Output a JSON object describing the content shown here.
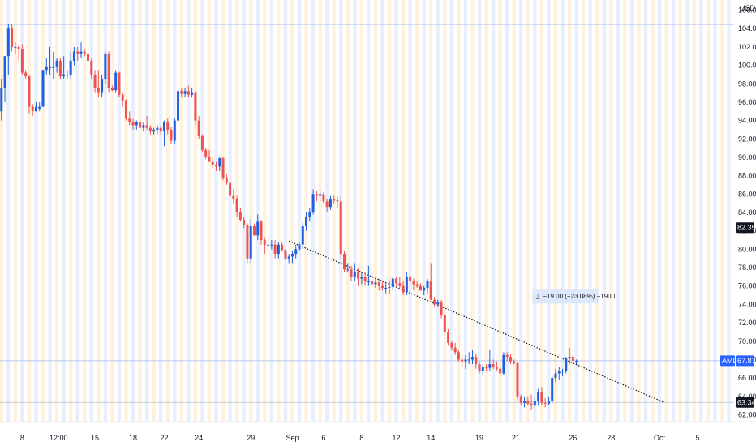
{
  "colors": {
    "up": "#1f5fe0",
    "down": "#ef5350",
    "band_orange": "#fff1dc",
    "band_blue": "#e8eefc",
    "price_line_blue": "#b9c7f0",
    "tag_blue": "#2962ff",
    "tag_black": "#131722",
    "measure_bg": "#dbe7fb",
    "trend": "#131722"
  },
  "chart_data": {
    "type": "candlestick",
    "currency": "USD",
    "y_range": [
      61.6,
      106.4
    ],
    "y_ticks": [
      "106.00",
      "104.00",
      "102.00",
      "100.00",
      "98.00",
      "96.00",
      "94.00",
      "92.00",
      "90.00",
      "88.00",
      "86.00",
      "84.00",
      "82.00",
      "80.00",
      "78.00",
      "76.00",
      "74.00",
      "72.00",
      "70.00",
      "68.00",
      "66.00",
      "64.00",
      "62.00"
    ],
    "x_ticks": [
      {
        "label": "8",
        "x": 7.0
      },
      {
        "label": "12:00",
        "x": 17.5
      },
      {
        "label": "15",
        "x": 28.0
      },
      {
        "label": "18",
        "x": 39.0
      },
      {
        "label": "22",
        "x": 48.0
      },
      {
        "label": "24",
        "x": 58.0
      },
      {
        "label": "29",
        "x": 73.0
      },
      {
        "label": "Sep",
        "x": 85.0
      },
      {
        "label": "6",
        "x": 94.0
      },
      {
        "label": "8",
        "x": 105.0
      },
      {
        "label": "12",
        "x": 115.0
      },
      {
        "label": "14",
        "x": 125.0
      },
      {
        "label": "19",
        "x": 139.0
      },
      {
        "label": "21",
        "x": 149.5
      },
      {
        "label": "26",
        "x": 166.0
      },
      {
        "label": "28",
        "x": 177.0
      },
      {
        "label": "Oct",
        "x": 191.0
      },
      {
        "label": "5",
        "x": 202.0
      }
    ],
    "candles": [
      [
        97.5,
        99,
        94,
        95
      ],
      [
        95,
        98.5,
        94,
        97.5
      ],
      [
        97.5,
        101,
        96,
        101
      ],
      [
        101,
        104.5,
        99,
        104
      ],
      [
        104,
        104.5,
        101.5,
        102
      ],
      [
        102,
        102.5,
        101.2,
        102
      ],
      [
        102,
        102.2,
        100.5,
        101.8
      ],
      [
        101.8,
        102.3,
        99,
        99.2
      ],
      [
        99.2,
        99.5,
        98.5,
        98.8
      ],
      [
        98.8,
        99,
        94.8,
        95.5
      ],
      [
        95.5,
        95.8,
        94.5,
        95
      ],
      [
        95,
        96,
        95,
        95.5
      ],
      [
        95.3,
        96,
        95,
        95.5
      ],
      [
        95.5,
        99.5,
        95.5,
        99.5
      ],
      [
        99.5,
        100.8,
        99,
        99.8
      ],
      [
        99.8,
        102,
        99,
        99.8
      ],
      [
        99.8,
        101.5,
        98.5,
        99.8
      ],
      [
        99.8,
        100.8,
        99.2,
        100.5
      ],
      [
        100.5,
        100.8,
        98.5,
        98.8
      ],
      [
        98.8,
        101,
        98.5,
        99
      ],
      [
        99,
        99.5,
        98.5,
        99
      ],
      [
        99,
        101.5,
        98.5,
        100.5
      ],
      [
        100.5,
        102,
        100,
        101.5
      ],
      [
        101.5,
        102,
        100.5,
        101.3
      ],
      [
        101.3,
        102.5,
        100.8,
        101.5
      ],
      [
        101.5,
        101.8,
        101,
        101.3
      ],
      [
        101.3,
        101.5,
        100,
        100.5
      ],
      [
        100.5,
        100.8,
        98.5,
        99
      ],
      [
        99,
        99.5,
        97,
        97.5
      ],
      [
        97.5,
        99.5,
        96.5,
        97
      ],
      [
        97,
        99,
        96.5,
        98.5
      ],
      [
        98.5,
        101.5,
        98,
        101.2
      ],
      [
        101.2,
        101.5,
        97,
        97.5
      ],
      [
        97.5,
        97.8,
        97.2,
        97.3
      ],
      [
        97.3,
        99.5,
        97,
        99.2
      ],
      [
        99.2,
        99.3,
        96.5,
        96.8
      ],
      [
        96.8,
        97,
        95.5,
        96.2
      ],
      [
        96.2,
        96.3,
        94,
        94.2
      ],
      [
        94.2,
        95,
        93.5,
        93.8
      ],
      [
        93.8,
        94.2,
        93,
        93.5
      ],
      [
        93.5,
        94,
        93,
        93.8
      ],
      [
        93.8,
        94.5,
        93,
        93.2
      ],
      [
        93.2,
        93.8,
        92.8,
        93.5
      ],
      [
        93.5,
        94.5,
        93,
        93.2
      ],
      [
        93.2,
        93.5,
        92.5,
        92.8
      ],
      [
        92.8,
        93.2,
        92.5,
        93
      ],
      [
        93,
        93.5,
        92.5,
        93.2
      ],
      [
        93.2,
        93.5,
        92.5,
        92.8
      ],
      [
        92.8,
        94,
        91.2,
        93.8
      ],
      [
        93.8,
        94.2,
        92.5,
        93
      ],
      [
        93,
        93.3,
        91.5,
        91.8
      ],
      [
        91.8,
        94.3,
        91.5,
        94
      ],
      [
        94,
        97.5,
        93.5,
        97.2
      ],
      [
        97.2,
        97.5,
        96.5,
        96.9
      ],
      [
        96.9,
        97.5,
        96.5,
        97.2
      ],
      [
        97.2,
        97.8,
        96.5,
        96.8
      ],
      [
        96.8,
        97.5,
        96.5,
        97
      ],
      [
        97,
        97.2,
        93.5,
        94
      ],
      [
        94,
        94.5,
        92,
        92.3
      ],
      [
        92.3,
        92.5,
        90.5,
        90.8
      ],
      [
        90.8,
        91,
        89.8,
        90.1
      ],
      [
        90.1,
        90.8,
        89.5,
        89.5
      ],
      [
        89.5,
        90,
        88.8,
        89.2
      ],
      [
        89.2,
        89.5,
        88.5,
        89
      ],
      [
        89,
        90,
        88.5,
        89.9
      ],
      [
        89.9,
        90,
        87.5,
        87.8
      ],
      [
        87.8,
        88.2,
        87,
        87.2
      ],
      [
        87.2,
        87.5,
        85.5,
        85.8
      ],
      [
        85.8,
        86.5,
        85,
        85.5
      ],
      [
        85.5,
        85.8,
        83.5,
        84
      ],
      [
        84,
        84.5,
        83,
        83.2
      ],
      [
        83.2,
        83.5,
        82.3,
        82.6
      ],
      [
        82.6,
        82.8,
        78.5,
        79
      ],
      [
        79,
        83.3,
        78.5,
        82.5
      ],
      [
        82.5,
        82.8,
        81.5,
        81.5
      ],
      [
        81.5,
        83.8,
        81,
        83
      ],
      [
        83,
        83.2,
        80.5,
        81
      ],
      [
        81,
        81.3,
        79.5,
        80.5
      ],
      [
        80.5,
        81.5,
        80.2,
        80.5
      ],
      [
        80.5,
        81,
        80,
        80.5
      ],
      [
        80.5,
        81,
        79,
        79.5
      ],
      [
        79.5,
        80.8,
        79,
        80.5
      ],
      [
        80.5,
        80.8,
        79.8,
        79.9
      ],
      [
        79.9,
        80,
        78.8,
        79
      ],
      [
        79,
        79.5,
        78.5,
        79.2
      ],
      [
        79.2,
        79.8,
        78.5,
        79.5
      ],
      [
        79.5,
        80.5,
        79,
        80
      ],
      [
        80,
        80.8,
        79.8,
        80.5
      ],
      [
        80.5,
        83,
        80,
        82.5
      ],
      [
        82.5,
        84,
        82,
        83.5
      ],
      [
        83.5,
        84.5,
        83,
        84
      ],
      [
        84,
        86.5,
        83.8,
        86
      ],
      [
        86,
        86.3,
        85.2,
        85.8
      ],
      [
        85.8,
        86.5,
        85.2,
        86
      ],
      [
        86,
        86.2,
        85,
        85.2
      ],
      [
        85.2,
        85.5,
        84,
        84.6
      ],
      [
        84.6,
        85.8,
        84.3,
        85.5
      ],
      [
        85.5,
        85.8,
        85,
        85.3
      ],
      [
        85.3,
        85.8,
        84.5,
        85.2
      ],
      [
        85.2,
        85.8,
        79,
        79.5
      ],
      [
        79.5,
        79.8,
        77.5,
        77.8
      ],
      [
        77.8,
        78.5,
        77.5,
        77.8
      ],
      [
        77.8,
        78.2,
        76.5,
        77
      ],
      [
        77,
        78.5,
        76.5,
        77.5
      ],
      [
        77.5,
        78,
        76,
        76.8
      ],
      [
        76.8,
        77.5,
        76.2,
        77
      ],
      [
        77,
        77.5,
        76,
        76.5
      ],
      [
        76.5,
        78.2,
        76,
        76.5
      ],
      [
        76.5,
        77.5,
        76,
        76.2
      ],
      [
        76.2,
        76.8,
        75.8,
        76.4
      ],
      [
        76.4,
        76.8,
        75.5,
        76
      ],
      [
        76,
        76.5,
        75.5,
        75.8
      ],
      [
        75.8,
        76.3,
        75.2,
        75.8
      ],
      [
        75.8,
        76.5,
        75.2,
        75.9
      ],
      [
        75.9,
        77,
        75.5,
        76.8
      ],
      [
        76.8,
        77,
        76,
        76.3
      ],
      [
        76.3,
        77,
        75.8,
        76
      ],
      [
        76,
        76.5,
        75,
        75.3
      ],
      [
        75.3,
        77.5,
        75,
        77
      ],
      [
        77,
        77.2,
        76,
        76.5
      ],
      [
        76.5,
        76.8,
        75.5,
        76.2
      ],
      [
        76.2,
        76.5,
        75.8,
        76
      ],
      [
        76,
        76.3,
        75.5,
        75.5
      ],
      [
        75.5,
        76,
        75,
        75.8
      ],
      [
        75.8,
        76.8,
        75.2,
        76.5
      ],
      [
        76.5,
        78.5,
        74.5,
        74.5
      ],
      [
        74.5,
        74.8,
        73.8,
        74
      ],
      [
        74,
        74.5,
        73.8,
        74.2
      ],
      [
        74.2,
        74.5,
        72.5,
        72.8
      ],
      [
        72.8,
        73,
        70.8,
        71
      ],
      [
        71,
        71.3,
        69.5,
        69.8
      ],
      [
        69.8,
        70,
        69,
        69.3
      ],
      [
        69.3,
        69.8,
        68.5,
        68.8
      ],
      [
        68.8,
        69,
        67.8,
        68
      ],
      [
        68,
        68.5,
        67.2,
        67.8
      ],
      [
        67.8,
        68.5,
        67,
        68
      ],
      [
        68,
        68.8,
        67.5,
        68
      ],
      [
        68,
        69,
        67.5,
        68.3
      ],
      [
        68.3,
        68.6,
        67,
        67.5
      ],
      [
        67.5,
        67.8,
        66.5,
        66.8
      ],
      [
        66.8,
        67.5,
        66.3,
        67.2
      ],
      [
        67.2,
        67.5,
        66.8,
        67.1
      ],
      [
        67.1,
        69,
        66.8,
        67.5
      ],
      [
        67.5,
        68,
        67,
        67.2
      ],
      [
        67.2,
        67.8,
        66.8,
        67
      ],
      [
        67,
        67.3,
        66.2,
        66.5
      ],
      [
        66.5,
        68.8,
        66.3,
        68.5
      ],
      [
        68.5,
        68.8,
        67.8,
        68.3
      ],
      [
        68.3,
        68.6,
        67.5,
        67.8
      ],
      [
        67.8,
        68,
        67.5,
        67.6
      ],
      [
        67.6,
        67.8,
        63.5,
        64
      ],
      [
        64,
        64.2,
        63,
        63.3
      ],
      [
        63.3,
        64,
        62.8,
        63.5
      ],
      [
        63.5,
        64,
        63,
        63.2
      ],
      [
        63.2,
        64.2,
        62.5,
        63
      ],
      [
        63,
        64,
        62.8,
        63.5
      ],
      [
        63.5,
        64.8,
        63,
        64.5
      ],
      [
        64.5,
        65,
        63,
        63.3
      ],
      [
        63.3,
        63.8,
        62.8,
        63.2
      ],
      [
        63.2,
        64,
        63,
        63.5
      ],
      [
        63.5,
        66.3,
        63.2,
        66
      ],
      [
        66,
        67,
        65.5,
        66.5
      ],
      [
        66.5,
        67.2,
        65.8,
        66.7
      ],
      [
        66.7,
        67,
        66.2,
        66.8
      ],
      [
        66.8,
        68.3,
        66.5,
        68.2
      ],
      [
        68.2,
        69.3,
        67.5,
        68.3
      ],
      [
        68.3,
        68.5,
        67.5,
        67.87
      ],
      [
        67.87,
        68,
        67.5,
        67.87
      ]
    ],
    "price_lines": [
      {
        "label": "82.35",
        "value": 82.35,
        "color": "tag_black",
        "line": false
      },
      {
        "label": "AMD",
        "value_label": "67.87",
        "value": 67.87,
        "color": "tag_blue",
        "line": true
      },
      {
        "label": "63.34",
        "value": 63.34,
        "color": "tag_black",
        "line": true
      }
    ],
    "reference_lines": [
      104.45
    ],
    "trend_line": {
      "from": [
        84,
        80.9
      ],
      "to": [
        192,
        63.4
      ]
    },
    "measurement": {
      "text": "−19.00 (−23.08%) −1900",
      "at": [
        155,
        74.9
      ]
    }
  }
}
